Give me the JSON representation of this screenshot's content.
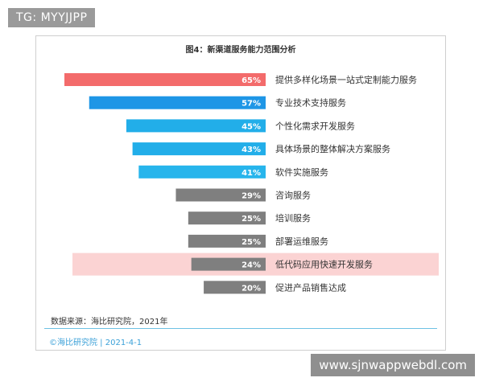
{
  "overlay": {
    "top_tag": "TG: MYYJJPP",
    "bottom_tag": "www.sjnwappwebdl.com"
  },
  "chart_data": {
    "type": "bar",
    "orientation": "horizontal",
    "title": "图4：新渠道服务能力范围分析",
    "categories": [
      "提供多样化场景一站式定制能力服务",
      "专业技术支持服务",
      "个性化需求开发服务",
      "具体场景的整体解决方案服务",
      "软件实施服务",
      "咨询服务",
      "培训服务",
      "部署运维服务",
      "低代码应用快速开发服务",
      "促进产品销售达成"
    ],
    "values": [
      65,
      57,
      45,
      43,
      41,
      29,
      25,
      25,
      24,
      20
    ],
    "value_labels": [
      "65%",
      "57%",
      "45%",
      "43%",
      "41%",
      "29%",
      "25%",
      "25%",
      "24%",
      "20%"
    ],
    "unit": "%",
    "highlighted_category": "低代码应用快速开发服务",
    "colors": {
      "top": "#f36b6b",
      "blue_dark": "#1e96e6",
      "blue_light": "#27b5ec",
      "gray": "#7f7f7f",
      "highlight_bg": "#fbd3d3"
    },
    "bar_colors": [
      "#f36b6b",
      "#1e96e6",
      "#22aee9",
      "#22aee9",
      "#27b5ec",
      "#7f7f7f",
      "#7f7f7f",
      "#7f7f7f",
      "#7f7f7f",
      "#7f7f7f"
    ],
    "source": "数据来源：海比研究院，2021年",
    "footer": "©海比研究院 | 2021-4-1"
  }
}
